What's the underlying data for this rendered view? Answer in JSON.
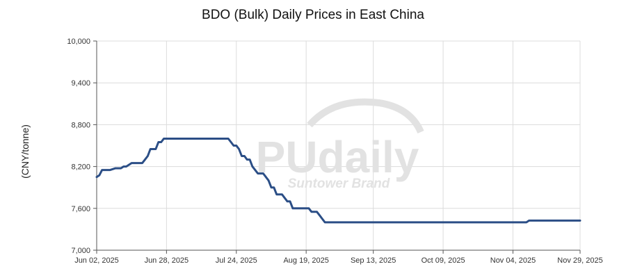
{
  "chart_data": {
    "type": "line",
    "title": "BDO (Bulk) Daily Prices in East China",
    "ylabel": "(CNY/tonne)",
    "xlabel": "",
    "ylim": [
      7000,
      10000
    ],
    "yticks": [
      7000,
      7600,
      8200,
      8800,
      9400,
      10000
    ],
    "ytick_labels": [
      "7,000",
      "7,600",
      "8,200",
      "8,800",
      "9,400",
      "10,000"
    ],
    "xlim": [
      "2025-06-02",
      "2025-11-29"
    ],
    "xticks": [
      "2025-06-02",
      "2025-06-28",
      "2025-07-24",
      "2025-08-19",
      "2025-09-13",
      "2025-10-09",
      "2025-11-04",
      "2025-11-29"
    ],
    "xtick_labels": [
      "Jun 02, 2025",
      "Jun 28, 2025",
      "Jul 24, 2025",
      "Aug 19, 2025",
      "Sep 13, 2025",
      "Oct 09, 2025",
      "Nov 04, 2025",
      "Nov 29, 2025"
    ],
    "grid": true,
    "watermark": {
      "main": "PUdaily",
      "sub": "Suntower Brand"
    },
    "colors": {
      "line": "#2b4e86",
      "grid": "#dcdcdc",
      "axis": "#555555",
      "watermark": "#e2e2e2"
    },
    "series": [
      {
        "points": [
          [
            "2025-06-02",
            8050
          ],
          [
            "2025-06-03",
            8075
          ],
          [
            "2025-06-04",
            8150
          ],
          [
            "2025-06-06",
            8150
          ],
          [
            "2025-06-07",
            8150
          ],
          [
            "2025-06-09",
            8175
          ],
          [
            "2025-06-11",
            8175
          ],
          [
            "2025-06-12",
            8200
          ],
          [
            "2025-06-13",
            8200
          ],
          [
            "2025-06-15",
            8250
          ],
          [
            "2025-06-19",
            8250
          ],
          [
            "2025-06-20",
            8300
          ],
          [
            "2025-06-21",
            8350
          ],
          [
            "2025-06-22",
            8450
          ],
          [
            "2025-06-24",
            8450
          ],
          [
            "2025-06-25",
            8550
          ],
          [
            "2025-06-26",
            8550
          ],
          [
            "2025-06-27",
            8600
          ],
          [
            "2025-07-01",
            8600
          ],
          [
            "2025-07-05",
            8600
          ],
          [
            "2025-07-10",
            8600
          ],
          [
            "2025-07-15",
            8600
          ],
          [
            "2025-07-20",
            8600
          ],
          [
            "2025-07-21",
            8600
          ],
          [
            "2025-07-22",
            8550
          ],
          [
            "2025-07-23",
            8500
          ],
          [
            "2025-07-24",
            8500
          ],
          [
            "2025-07-25",
            8450
          ],
          [
            "2025-07-26",
            8350
          ],
          [
            "2025-07-27",
            8350
          ],
          [
            "2025-07-28",
            8300
          ],
          [
            "2025-07-29",
            8300
          ],
          [
            "2025-07-30",
            8200
          ],
          [
            "2025-07-31",
            8150
          ],
          [
            "2025-08-01",
            8100
          ],
          [
            "2025-08-03",
            8100
          ],
          [
            "2025-08-04",
            8050
          ],
          [
            "2025-08-05",
            8000
          ],
          [
            "2025-08-06",
            7900
          ],
          [
            "2025-08-07",
            7900
          ],
          [
            "2025-08-08",
            7800
          ],
          [
            "2025-08-10",
            7800
          ],
          [
            "2025-08-11",
            7750
          ],
          [
            "2025-08-12",
            7700
          ],
          [
            "2025-08-13",
            7700
          ],
          [
            "2025-08-14",
            7600
          ],
          [
            "2025-08-20",
            7600
          ],
          [
            "2025-08-21",
            7550
          ],
          [
            "2025-08-23",
            7550
          ],
          [
            "2025-08-24",
            7500
          ],
          [
            "2025-08-25",
            7450
          ],
          [
            "2025-08-26",
            7400
          ],
          [
            "2025-09-13",
            7400
          ],
          [
            "2025-10-09",
            7400
          ],
          [
            "2025-11-04",
            7400
          ],
          [
            "2025-11-09",
            7400
          ],
          [
            "2025-11-10",
            7425
          ],
          [
            "2025-11-29",
            7425
          ]
        ]
      }
    ]
  }
}
